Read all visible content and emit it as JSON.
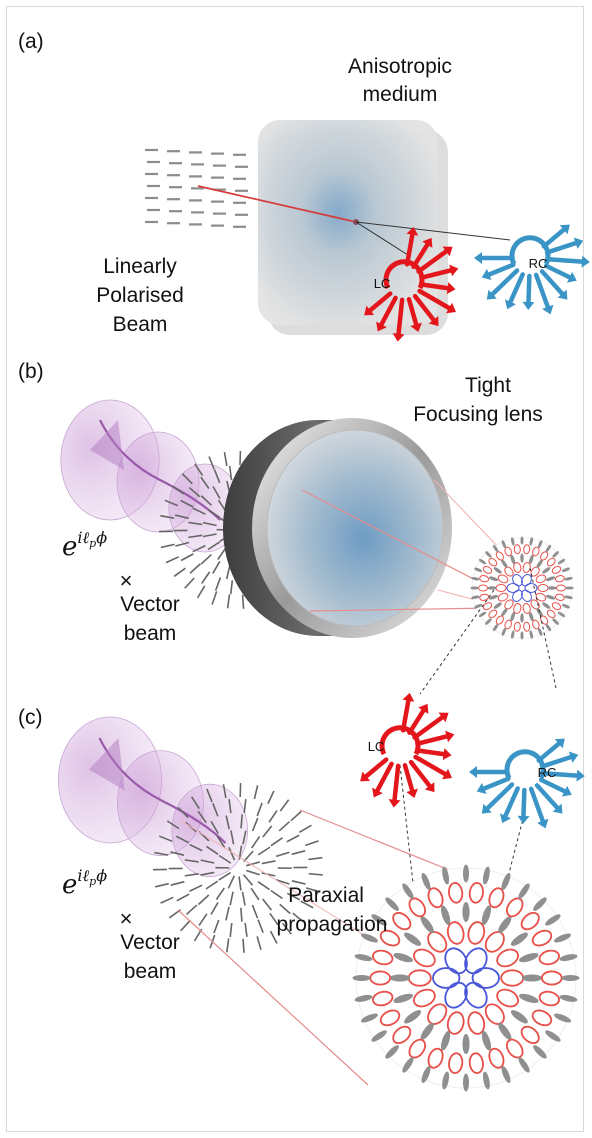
{
  "panels": {
    "a": {
      "tag": "(a)",
      "medium_label": [
        "Anisotropic",
        "medium"
      ],
      "beam_label": [
        "Linearly",
        "Polarised",
        "Beam"
      ],
      "lc": "LC",
      "rc": "RC"
    },
    "b": {
      "tag": "(b)",
      "lens_label": [
        "Tight",
        "Focusing lens"
      ],
      "phase_base": "e",
      "phase_exp": "iℓ",
      "phase_sub": "p",
      "phase_tail": "ϕ",
      "times": "×",
      "vector_label": [
        "Vector",
        "beam"
      ]
    },
    "c": {
      "tag": "(c)",
      "phase_base": "e",
      "phase_exp": "iℓ",
      "phase_sub": "p",
      "phase_tail": "ϕ",
      "times": "×",
      "vector_label": [
        "Vector",
        "beam"
      ],
      "propagation_label": [
        "Paraxial",
        "propagation"
      ],
      "lc": "LC",
      "rc": "RC"
    }
  },
  "colors": {
    "lc": "#e3161b",
    "rc": "#3a95c6",
    "ellipse_red": "#e8514a",
    "ellipse_blue": "#4a58d8",
    "bar_gray": "#8f8f8f",
    "purple": "#b486c0",
    "ray": "#d73c3c"
  }
}
